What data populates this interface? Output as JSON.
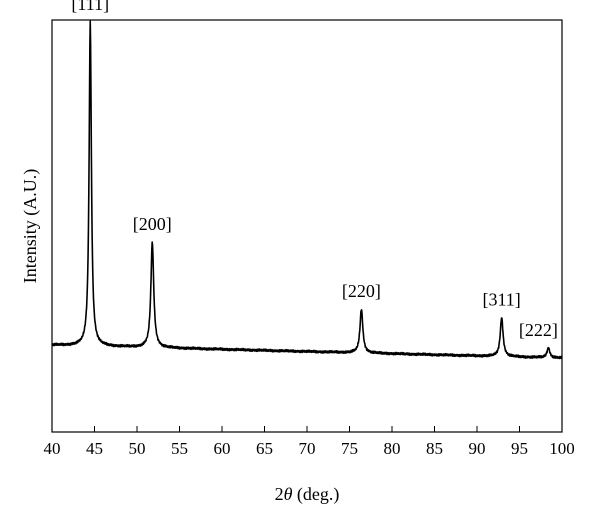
{
  "chart_data": {
    "type": "line",
    "xlabel_prefix": "2",
    "xlabel_symbol": "θ",
    "xlabel_suffix": " (deg.)",
    "ylabel": "Intensity (A.U.)",
    "xlim": [
      40,
      100
    ],
    "ylim": [
      0,
      100
    ],
    "x_ticks": [
      40,
      45,
      50,
      55,
      60,
      65,
      70,
      75,
      80,
      85,
      90,
      95,
      100
    ],
    "y_ticks_shown": false,
    "grid": false,
    "legend": "none",
    "line_color": "#000000",
    "baseline_start": 14.5,
    "baseline_end": 10.5,
    "peaks": [
      {
        "x": 44.5,
        "height": 100.0,
        "width": 0.16,
        "label": "[111]"
      },
      {
        "x": 51.8,
        "height": 32.5,
        "width": 0.2,
        "label": "[200]"
      },
      {
        "x": 76.4,
        "height": 13.5,
        "width": 0.2,
        "label": "[220]"
      },
      {
        "x": 92.9,
        "height": 12.0,
        "width": 0.2,
        "label": "[311]"
      },
      {
        "x": 98.4,
        "height": 3.0,
        "width": 0.2,
        "label": "[222]"
      }
    ]
  }
}
